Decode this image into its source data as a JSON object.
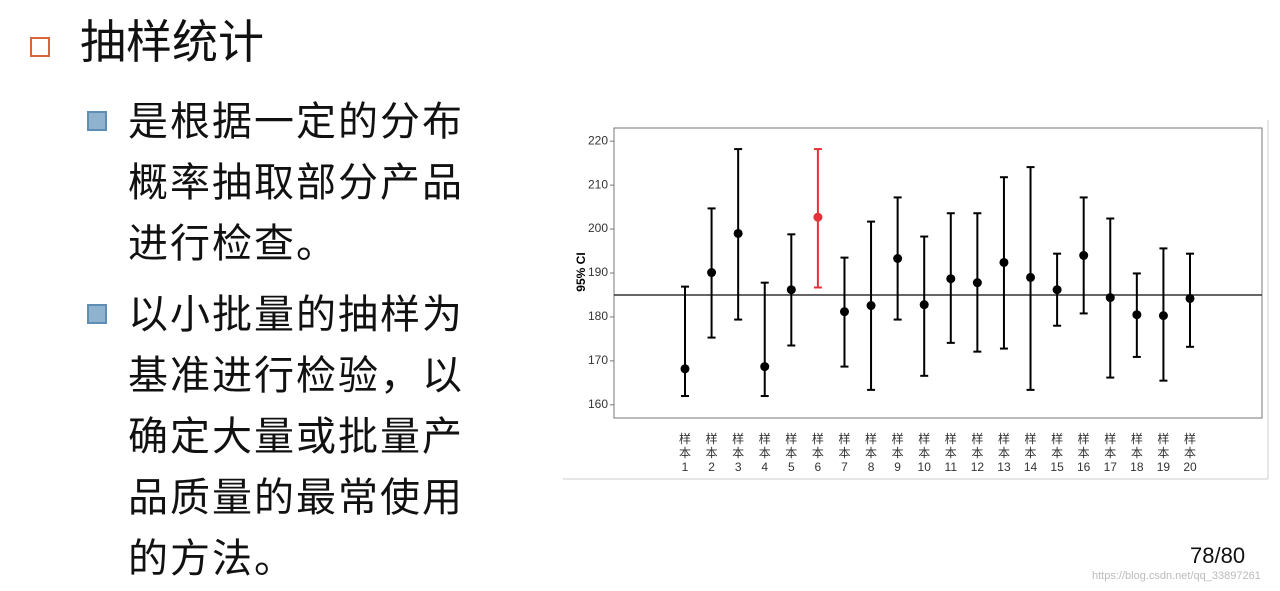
{
  "slide": {
    "title": "抽样统计",
    "bullets": [
      {
        "lines": [
          "是根据一定的分布",
          "概率抽取部分产品",
          "进行检查。"
        ]
      },
      {
        "lines": [
          "以小批量的抽样为",
          "基准进行检验，以",
          "确定大量或批量产",
          "品质量的最常使用",
          "的方法。"
        ]
      }
    ],
    "page_number": "78/80",
    "watermark": "https://blog.csdn.net/qq_33897261"
  },
  "chart_data": {
    "type": "errorbar",
    "ylabel": "95% CI",
    "categories": [
      "样本1",
      "样本2",
      "样本3",
      "样本4",
      "样本5",
      "样本6",
      "样本7",
      "样本8",
      "样本9",
      "样本10",
      "样本11",
      "样本12",
      "样本13",
      "样本14",
      "样本15",
      "样本16",
      "样本17",
      "样本18",
      "样本19",
      "样本20"
    ],
    "series": [
      {
        "values": [
          168.2,
          190.1,
          199.0,
          168.7,
          186.2,
          202.7,
          181.2,
          182.6,
          193.3,
          182.8,
          188.7,
          187.8,
          192.4,
          189.0,
          186.2,
          194.0,
          184.4,
          180.5,
          180.3,
          184.2
        ],
        "lower": [
          162.0,
          175.3,
          179.4,
          162.0,
          173.5,
          186.7,
          168.7,
          163.4,
          179.4,
          166.6,
          174.1,
          172.1,
          172.8,
          163.4,
          178.0,
          180.8,
          166.2,
          170.9,
          165.5,
          173.2
        ],
        "upper": [
          186.9,
          204.7,
          218.2,
          187.8,
          198.8,
          218.2,
          193.5,
          201.7,
          207.2,
          198.3,
          203.6,
          203.6,
          211.8,
          214.1,
          194.4,
          207.2,
          202.4,
          189.9,
          195.6,
          194.4
        ],
        "colors": [
          "#000",
          "#000",
          "#000",
          "#000",
          "#000",
          "#e8303a",
          "#000",
          "#000",
          "#000",
          "#000",
          "#000",
          "#000",
          "#000",
          "#000",
          "#000",
          "#000",
          "#000",
          "#000",
          "#000",
          "#000"
        ]
      }
    ],
    "reference_line": 185,
    "ylim": [
      157,
      223
    ],
    "yticks": [
      160,
      170,
      180,
      190,
      200,
      210,
      220
    ]
  }
}
